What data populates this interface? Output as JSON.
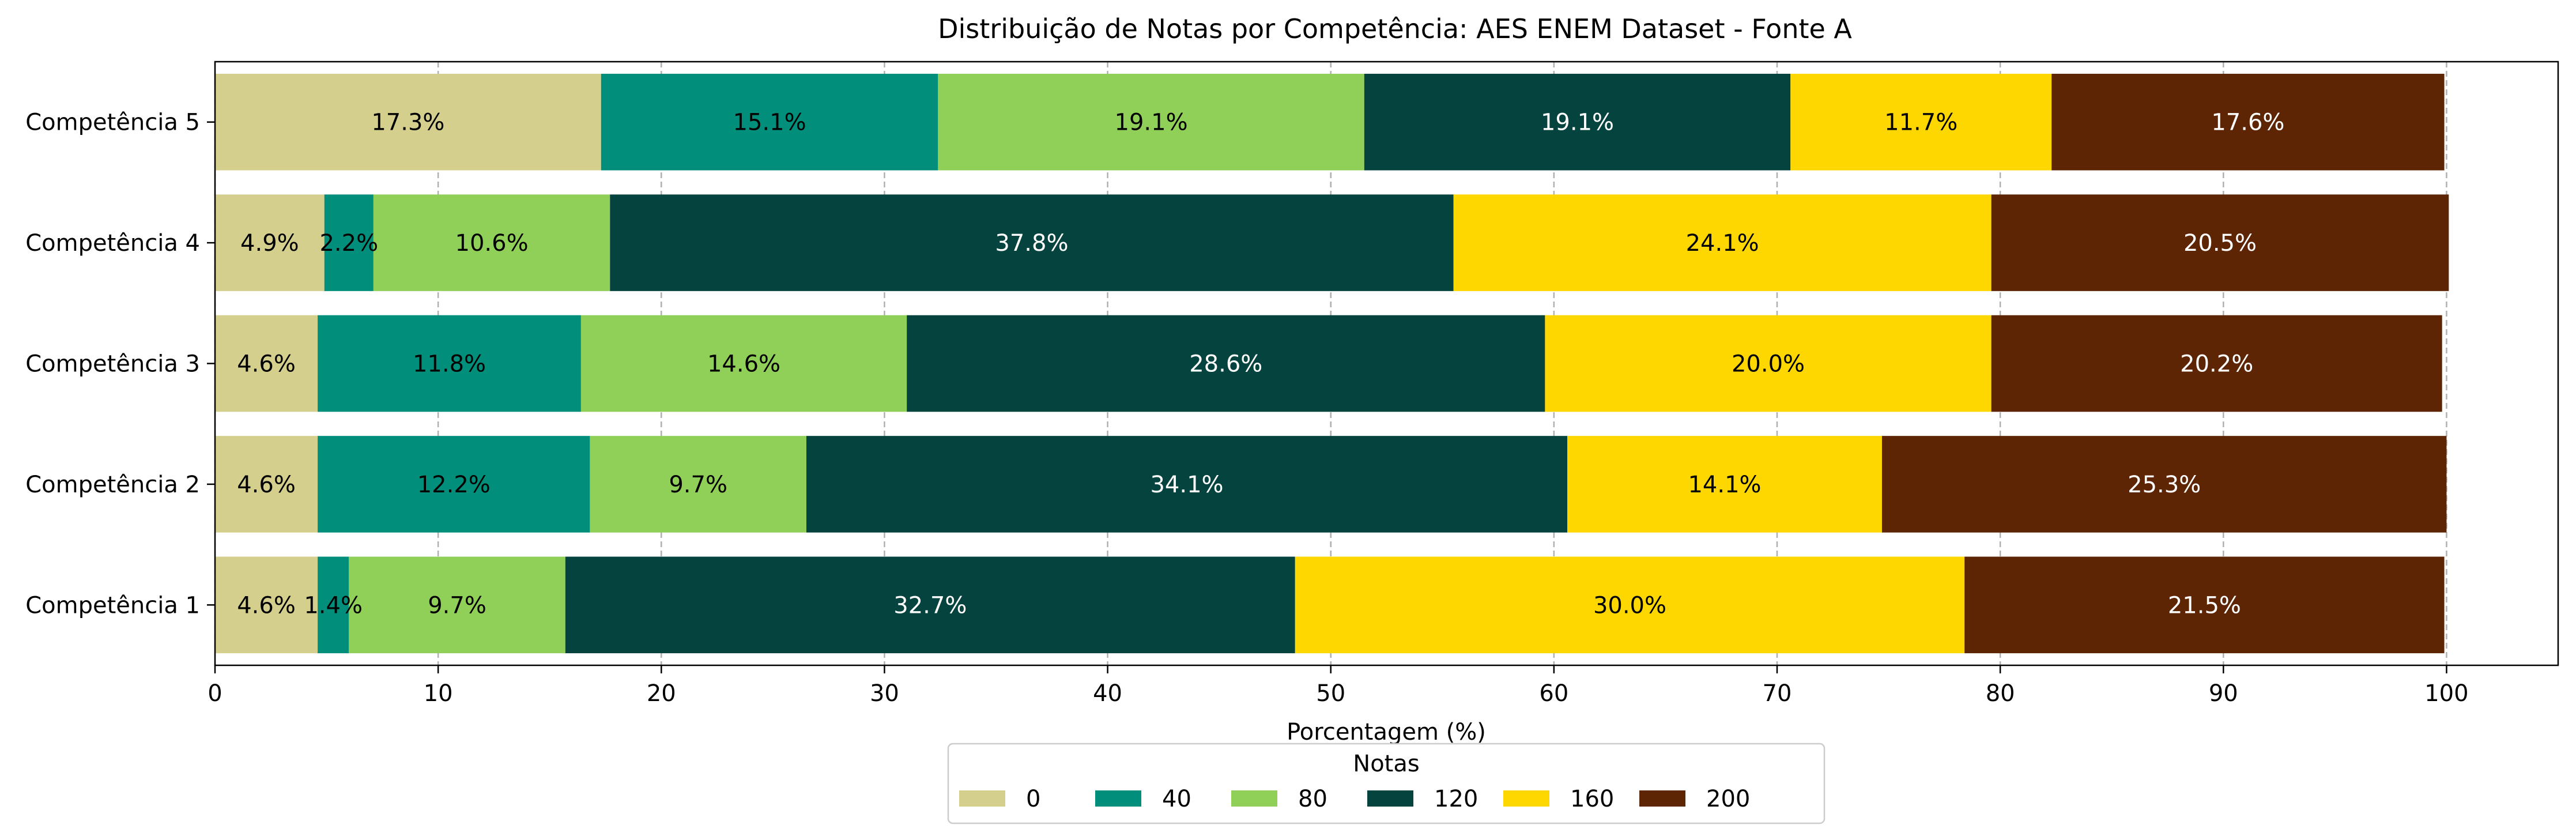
{
  "chart_data": {
    "type": "bar",
    "orientation": "horizontal",
    "stacked": true,
    "title": "Distribuição de Notas por Competência: AES ENEM Dataset - Fonte A",
    "xlabel": "Porcentagem (%)",
    "ylabel": "",
    "xlim": [
      0,
      105
    ],
    "xticks": [
      0,
      10,
      20,
      30,
      40,
      50,
      60,
      70,
      80,
      90,
      100
    ],
    "grid": "x-dashed",
    "categories": [
      "Competência 1",
      "Competência 2",
      "Competência 3",
      "Competência 4",
      "Competência 5"
    ],
    "series": [
      {
        "name": "0",
        "color": "#d5cf8e",
        "text_color": "#000000",
        "values": [
          4.6,
          4.6,
          4.6,
          4.9,
          17.3
        ]
      },
      {
        "name": "40",
        "color": "#018e7a",
        "text_color": "#000000",
        "values": [
          1.4,
          12.2,
          11.8,
          2.2,
          15.1
        ]
      },
      {
        "name": "80",
        "color": "#90d058",
        "text_color": "#000000",
        "values": [
          9.7,
          9.7,
          14.6,
          10.6,
          19.1
        ]
      },
      {
        "name": "120",
        "color": "#05443e",
        "text_color": "#ffffff",
        "values": [
          32.7,
          34.1,
          28.6,
          37.8,
          19.1
        ]
      },
      {
        "name": "160",
        "color": "#fed700",
        "text_color": "#000000",
        "values": [
          30.0,
          14.1,
          20.0,
          24.1,
          11.7
        ]
      },
      {
        "name": "200",
        "color": "#5e2505",
        "text_color": "#ffffff",
        "values": [
          21.5,
          25.3,
          20.2,
          20.5,
          17.6
        ]
      }
    ],
    "data_labels": [
      [
        "4.6%",
        "1.4%",
        "9.7%",
        "32.7%",
        "30.0%",
        "21.5%"
      ],
      [
        "4.6%",
        "12.2%",
        "9.7%",
        "34.1%",
        "14.1%",
        "25.3%"
      ],
      [
        "4.6%",
        "11.8%",
        "14.6%",
        "28.6%",
        "20.0%",
        "20.2%"
      ],
      [
        "4.9%",
        "2.2%",
        "10.6%",
        "37.8%",
        "24.1%",
        "20.5%"
      ],
      [
        "17.3%",
        "15.1%",
        "19.1%",
        "19.1%",
        "11.7%",
        "17.6%"
      ]
    ],
    "legend": {
      "title": "Notas",
      "placement": "bottom-center",
      "entries": [
        "0",
        "40",
        "80",
        "120",
        "160",
        "200"
      ]
    }
  }
}
